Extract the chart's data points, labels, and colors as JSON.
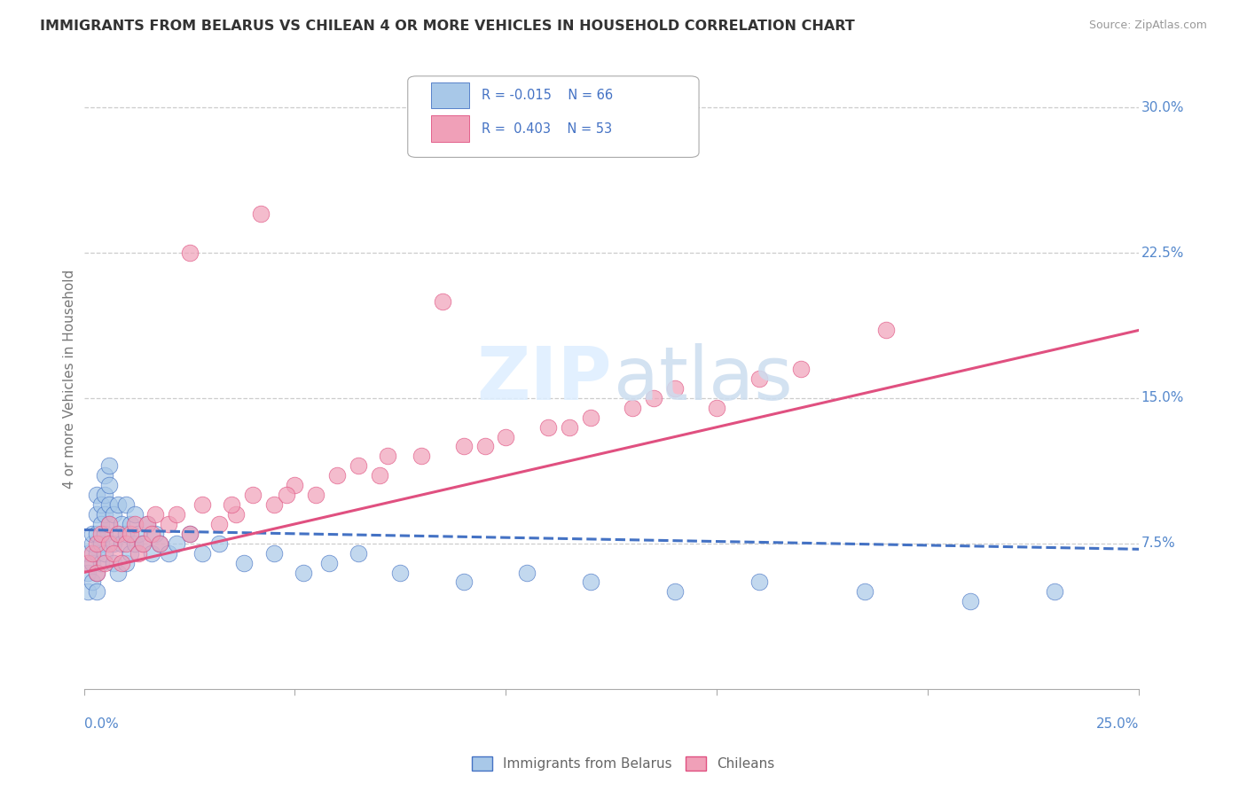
{
  "title": "IMMIGRANTS FROM BELARUS VS CHILEAN 4 OR MORE VEHICLES IN HOUSEHOLD CORRELATION CHART",
  "source": "Source: ZipAtlas.com",
  "ylabel": "4 or more Vehicles in Household",
  "ytick_labels": [
    "7.5%",
    "15.0%",
    "22.5%",
    "30.0%"
  ],
  "ytick_values": [
    0.075,
    0.15,
    0.225,
    0.3
  ],
  "color_blue": "#a8c8e8",
  "color_pink": "#f0a0b8",
  "color_blue_dark": "#4472C4",
  "color_pink_dark": "#E05080",
  "color_axis_label": "#5588CC",
  "xlim": [
    0.0,
    0.25
  ],
  "ylim": [
    0.0,
    0.32
  ],
  "blue_scatter_x": [
    0.001,
    0.001,
    0.001,
    0.002,
    0.002,
    0.002,
    0.002,
    0.003,
    0.003,
    0.003,
    0.003,
    0.003,
    0.003,
    0.004,
    0.004,
    0.004,
    0.004,
    0.005,
    0.005,
    0.005,
    0.005,
    0.005,
    0.006,
    0.006,
    0.006,
    0.006,
    0.007,
    0.007,
    0.007,
    0.008,
    0.008,
    0.008,
    0.009,
    0.009,
    0.01,
    0.01,
    0.01,
    0.011,
    0.011,
    0.012,
    0.012,
    0.013,
    0.014,
    0.015,
    0.016,
    0.017,
    0.018,
    0.02,
    0.022,
    0.025,
    0.028,
    0.032,
    0.038,
    0.045,
    0.052,
    0.058,
    0.065,
    0.075,
    0.09,
    0.105,
    0.12,
    0.14,
    0.16,
    0.185,
    0.21,
    0.23
  ],
  "blue_scatter_y": [
    0.06,
    0.07,
    0.05,
    0.065,
    0.075,
    0.08,
    0.055,
    0.07,
    0.08,
    0.09,
    0.1,
    0.06,
    0.05,
    0.075,
    0.085,
    0.095,
    0.065,
    0.08,
    0.09,
    0.1,
    0.11,
    0.07,
    0.085,
    0.095,
    0.105,
    0.115,
    0.075,
    0.09,
    0.065,
    0.08,
    0.095,
    0.06,
    0.075,
    0.085,
    0.08,
    0.095,
    0.065,
    0.07,
    0.085,
    0.075,
    0.09,
    0.08,
    0.075,
    0.085,
    0.07,
    0.08,
    0.075,
    0.07,
    0.075,
    0.08,
    0.07,
    0.075,
    0.065,
    0.07,
    0.06,
    0.065,
    0.07,
    0.06,
    0.055,
    0.06,
    0.055,
    0.05,
    0.055,
    0.05,
    0.045,
    0.05
  ],
  "pink_scatter_x": [
    0.001,
    0.002,
    0.003,
    0.003,
    0.004,
    0.005,
    0.006,
    0.006,
    0.007,
    0.008,
    0.009,
    0.01,
    0.011,
    0.012,
    0.013,
    0.014,
    0.015,
    0.016,
    0.017,
    0.018,
    0.02,
    0.022,
    0.025,
    0.028,
    0.032,
    0.036,
    0.04,
    0.045,
    0.05,
    0.055,
    0.06,
    0.065,
    0.07,
    0.08,
    0.09,
    0.1,
    0.11,
    0.12,
    0.13,
    0.14,
    0.15,
    0.16,
    0.17,
    0.19,
    0.035,
    0.048,
    0.072,
    0.095,
    0.115,
    0.135,
    0.025,
    0.042,
    0.085
  ],
  "pink_scatter_y": [
    0.065,
    0.07,
    0.06,
    0.075,
    0.08,
    0.065,
    0.075,
    0.085,
    0.07,
    0.08,
    0.065,
    0.075,
    0.08,
    0.085,
    0.07,
    0.075,
    0.085,
    0.08,
    0.09,
    0.075,
    0.085,
    0.09,
    0.08,
    0.095,
    0.085,
    0.09,
    0.1,
    0.095,
    0.105,
    0.1,
    0.11,
    0.115,
    0.11,
    0.12,
    0.125,
    0.13,
    0.135,
    0.14,
    0.145,
    0.155,
    0.145,
    0.16,
    0.165,
    0.185,
    0.095,
    0.1,
    0.12,
    0.125,
    0.135,
    0.15,
    0.225,
    0.245,
    0.2
  ],
  "blue_trend_x": [
    0.0,
    0.25
  ],
  "blue_trend_y": [
    0.082,
    0.072
  ],
  "pink_trend_x": [
    0.0,
    0.25
  ],
  "pink_trend_y": [
    0.06,
    0.185
  ]
}
